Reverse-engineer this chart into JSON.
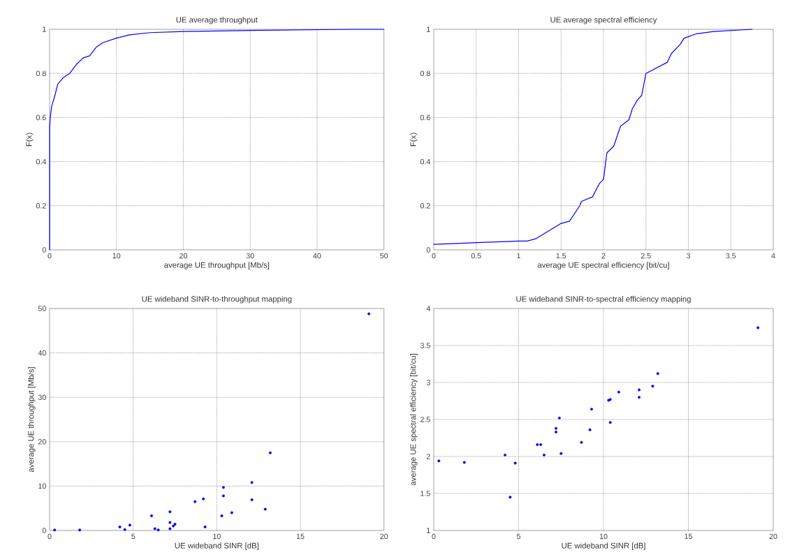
{
  "chart_data": [
    {
      "type": "line",
      "title": "UE average throughput",
      "xlabel": "average UE throughput [Mb/s]",
      "ylabel": "F(x)",
      "color": "#0000ff",
      "grid": true,
      "marker": "none",
      "x": [
        0,
        0,
        0.1,
        0.3,
        0.8,
        1.2,
        2,
        3,
        4,
        5,
        6,
        7,
        8,
        10,
        12,
        15,
        20,
        30,
        45,
        50
      ],
      "values": [
        0,
        0.55,
        0.6,
        0.65,
        0.7,
        0.75,
        0.78,
        0.8,
        0.84,
        0.87,
        0.88,
        0.92,
        0.94,
        0.96,
        0.975,
        0.985,
        0.99,
        0.995,
        1,
        1
      ],
      "xlim": [
        0,
        50
      ],
      "ylim": [
        0,
        1
      ],
      "xticks": [
        0,
        10,
        20,
        30,
        40,
        50
      ],
      "yticks": [
        0,
        0.2,
        0.4,
        0.6,
        0.8,
        1
      ]
    },
    {
      "type": "line",
      "title": "UE average spectral efficiency",
      "xlabel": "average UE spectral efficiency [bit/cu]",
      "ylabel": "F(x)",
      "color": "#0000ff",
      "grid": true,
      "marker": "none",
      "x": [
        0,
        0.5,
        1,
        1.1,
        1.2,
        1.5,
        1.6,
        1.72,
        1.74,
        1.87,
        1.95,
        2,
        2.02,
        2.04,
        2.12,
        2.2,
        2.3,
        2.34,
        2.4,
        2.45,
        2.5,
        2.75,
        2.8,
        2.9,
        2.95,
        3.1,
        3.3,
        3.75
      ],
      "values": [
        0.025,
        0.033,
        0.04,
        0.04,
        0.05,
        0.12,
        0.13,
        0.2,
        0.22,
        0.24,
        0.3,
        0.32,
        0.38,
        0.44,
        0.47,
        0.56,
        0.59,
        0.64,
        0.68,
        0.7,
        0.8,
        0.85,
        0.89,
        0.93,
        0.96,
        0.98,
        0.99,
        1
      ],
      "xlim": [
        0,
        4
      ],
      "ylim": [
        0,
        1
      ],
      "xticks": [
        0,
        0.5,
        1,
        1.5,
        2,
        2.5,
        3,
        3.5,
        4
      ],
      "yticks": [
        0,
        0.2,
        0.4,
        0.6,
        0.8,
        1
      ]
    },
    {
      "type": "scatter",
      "title": "UE wideband SINR-to-throughput mapping",
      "xlabel": "UE wideband SINR [dB]",
      "ylabel": "average UE throughput [Mb/s]",
      "color": "#0000ff",
      "grid": true,
      "marker": "circle",
      "x": [
        0.3,
        1.8,
        4.2,
        4.5,
        4.8,
        6.1,
        6.3,
        6.5,
        7.2,
        7.2,
        7.2,
        7.4,
        7.5,
        8.7,
        9.2,
        9.3,
        10.3,
        10.4,
        10.4,
        10.9,
        12.1,
        12.1,
        12.9,
        13.2,
        19.1
      ],
      "values": [
        0.1,
        0.1,
        0.8,
        0.2,
        1.2,
        3.3,
        0.4,
        0.1,
        4.2,
        1.8,
        0.4,
        1.0,
        1.4,
        6.5,
        7.1,
        0.8,
        3.3,
        7.8,
        9.7,
        4.0,
        10.8,
        6.9,
        4.8,
        17.5,
        48.8
      ],
      "xlim": [
        0,
        20
      ],
      "ylim": [
        0,
        50
      ],
      "xticks": [
        0,
        5,
        10,
        15,
        20
      ],
      "yticks": [
        0,
        10,
        20,
        30,
        40,
        50
      ]
    },
    {
      "type": "scatter",
      "title": "UE wideband SINR-to-spectral efficiency mapping",
      "xlabel": "UE wideband SINR [dB]",
      "ylabel": "average UE spectral efficiency [bit/cu]",
      "color": "#0000ff",
      "grid": true,
      "marker": "circle",
      "x": [
        0.3,
        1.8,
        4.2,
        4.5,
        4.8,
        6.1,
        6.3,
        6.5,
        7.2,
        7.2,
        7.4,
        7.5,
        8.7,
        9.2,
        9.3,
        10.3,
        10.4,
        10.4,
        10.9,
        12.1,
        12.1,
        12.9,
        13.2,
        19.1
      ],
      "values": [
        1.94,
        1.92,
        2.02,
        1.45,
        1.91,
        2.16,
        2.16,
        2.02,
        2.38,
        2.33,
        2.52,
        2.04,
        2.19,
        2.36,
        2.64,
        2.76,
        2.77,
        2.46,
        2.87,
        2.8,
        2.9,
        2.95,
        3.12,
        3.74
      ],
      "xlim": [
        0,
        20
      ],
      "ylim": [
        1,
        4
      ],
      "xticks": [
        0,
        5,
        10,
        15,
        20
      ],
      "yticks": [
        1,
        1.5,
        2,
        2.5,
        3,
        3.5,
        4
      ]
    }
  ]
}
